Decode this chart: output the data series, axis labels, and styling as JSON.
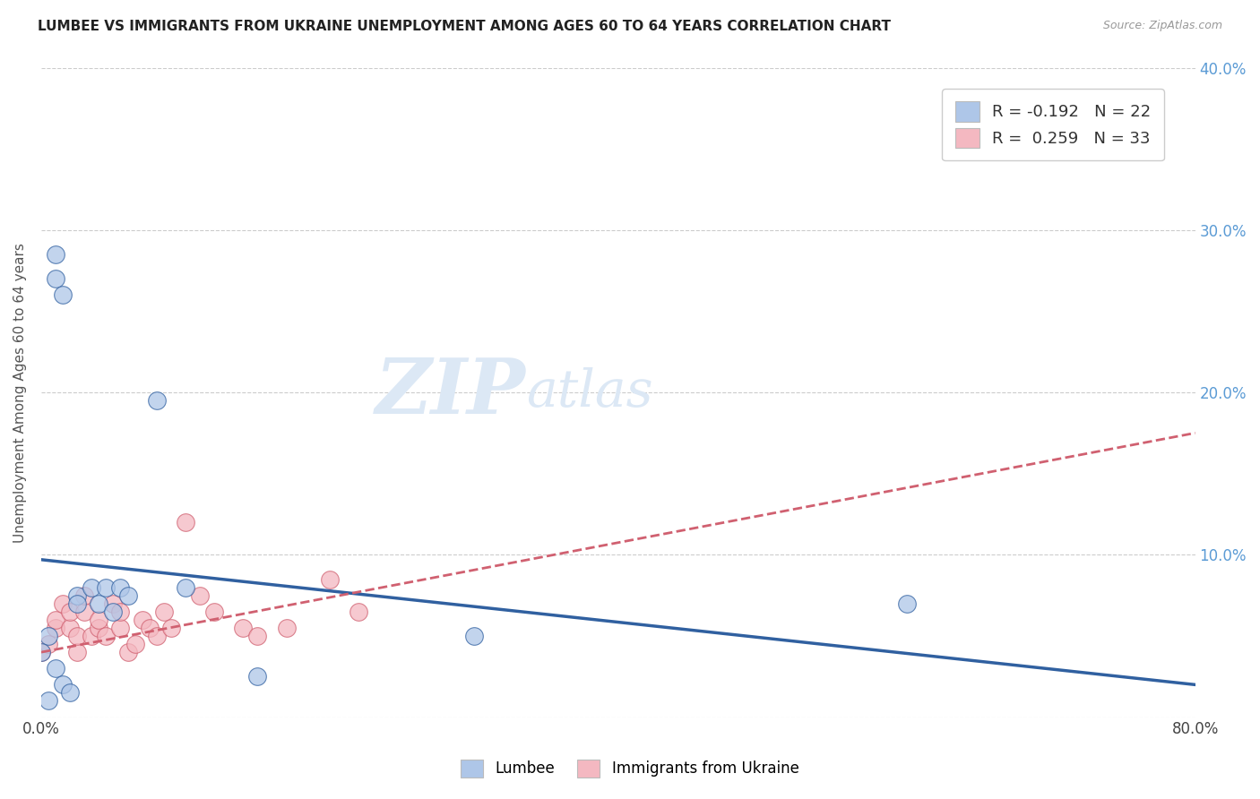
{
  "title": "LUMBEE VS IMMIGRANTS FROM UKRAINE UNEMPLOYMENT AMONG AGES 60 TO 64 YEARS CORRELATION CHART",
  "source": "Source: ZipAtlas.com",
  "ylabel": "Unemployment Among Ages 60 to 64 years",
  "xlim": [
    0,
    0.8
  ],
  "ylim": [
    0,
    0.4
  ],
  "xticks": [
    0.0,
    0.1,
    0.2,
    0.3,
    0.4,
    0.5,
    0.6,
    0.7,
    0.8
  ],
  "xticklabels": [
    "0.0%",
    "",
    "",
    "",
    "",
    "",
    "",
    "",
    "80.0%"
  ],
  "yticks": [
    0.0,
    0.1,
    0.2,
    0.3,
    0.4
  ],
  "left_yticklabels": [
    "",
    "",
    "",
    "",
    ""
  ],
  "right_yticklabels": [
    "",
    "10.0%",
    "20.0%",
    "30.0%",
    "40.0%"
  ],
  "background_color": "#ffffff",
  "watermark_zip": "ZIP",
  "watermark_atlas": "atlas",
  "lumbee_color": "#aec6e8",
  "ukraine_color": "#f4b8c1",
  "lumbee_line_color": "#3060a0",
  "ukraine_line_color": "#d06070",
  "lumbee_R": "-0.192",
  "lumbee_N": "22",
  "ukraine_R": "0.259",
  "ukraine_N": "33",
  "lumbee_points_x": [
    0.005,
    0.01,
    0.015,
    0.0,
    0.01,
    0.01,
    0.015,
    0.025,
    0.025,
    0.035,
    0.04,
    0.045,
    0.05,
    0.055,
    0.06,
    0.08,
    0.1,
    0.15,
    0.3,
    0.6,
    0.005,
    0.02
  ],
  "lumbee_points_y": [
    0.05,
    0.03,
    0.02,
    0.04,
    0.285,
    0.27,
    0.26,
    0.075,
    0.07,
    0.08,
    0.07,
    0.08,
    0.065,
    0.08,
    0.075,
    0.195,
    0.08,
    0.025,
    0.05,
    0.07,
    0.01,
    0.015
  ],
  "ukraine_points_x": [
    0.0,
    0.005,
    0.01,
    0.01,
    0.015,
    0.02,
    0.02,
    0.025,
    0.025,
    0.03,
    0.03,
    0.035,
    0.04,
    0.04,
    0.045,
    0.05,
    0.055,
    0.055,
    0.06,
    0.065,
    0.07,
    0.075,
    0.08,
    0.085,
    0.09,
    0.1,
    0.11,
    0.12,
    0.14,
    0.15,
    0.17,
    0.2,
    0.22
  ],
  "ukraine_points_y": [
    0.04,
    0.045,
    0.055,
    0.06,
    0.07,
    0.055,
    0.065,
    0.04,
    0.05,
    0.065,
    0.075,
    0.05,
    0.055,
    0.06,
    0.05,
    0.07,
    0.055,
    0.065,
    0.04,
    0.045,
    0.06,
    0.055,
    0.05,
    0.065,
    0.055,
    0.12,
    0.075,
    0.065,
    0.055,
    0.05,
    0.055,
    0.085,
    0.065
  ],
  "grid_color": "#cccccc",
  "right_ytick_color": "#5b9bd5",
  "lumbee_line_y0": 0.097,
  "lumbee_line_y1": 0.02,
  "ukraine_line_y0": 0.04,
  "ukraine_line_y1": 0.175
}
